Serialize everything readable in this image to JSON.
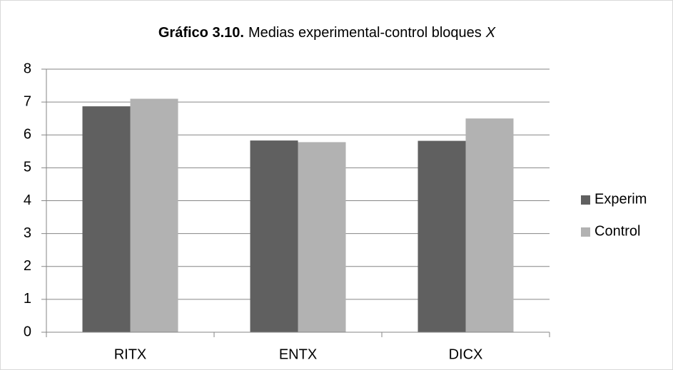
{
  "chart_data": {
    "type": "bar",
    "title": [
      "Gráfico 3.10.",
      "Medias experimental-control bloques",
      "X"
    ],
    "categories": [
      "RITX",
      "ENTX",
      "DICX"
    ],
    "series": [
      {
        "name": "Experim",
        "color": "#606060",
        "values": [
          6.87,
          5.83,
          5.82
        ]
      },
      {
        "name": "Control",
        "color": "#b2b2b2",
        "values": [
          7.1,
          5.78,
          6.5
        ]
      }
    ],
    "ylim": [
      0,
      8
    ],
    "yticks": [
      0,
      1,
      2,
      3,
      4,
      5,
      6,
      7,
      8
    ],
    "grid": true,
    "legend": "right"
  }
}
